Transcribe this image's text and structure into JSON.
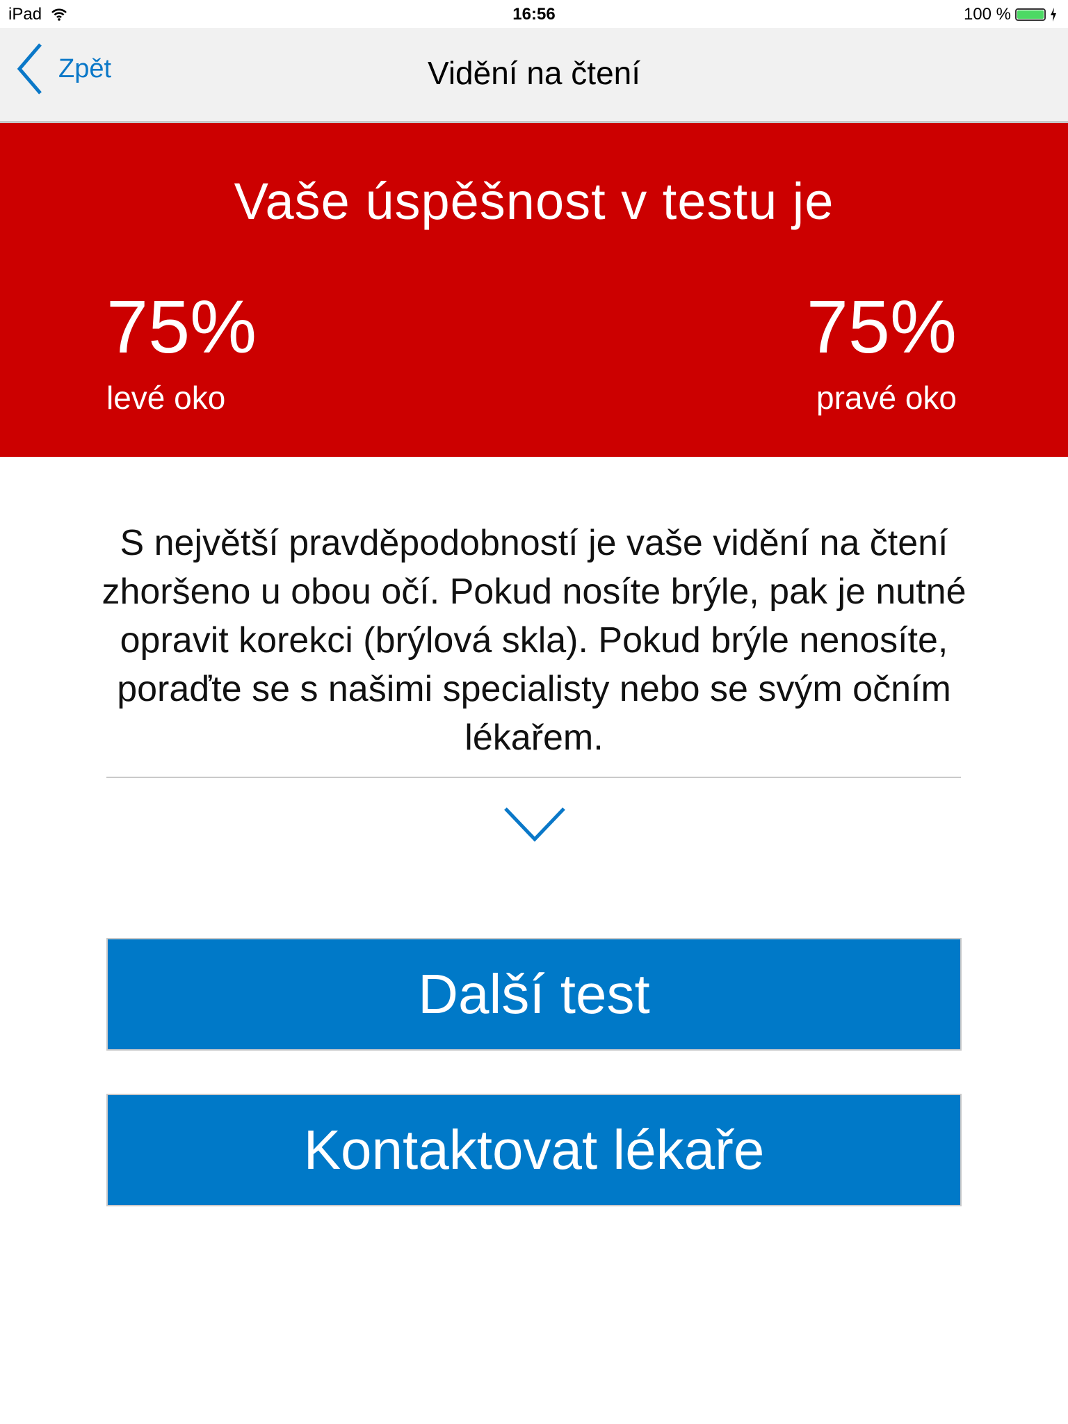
{
  "status_bar": {
    "device": "iPad",
    "time": "16:56",
    "battery": "100 %",
    "battery_level": 1.0
  },
  "nav": {
    "back_label": "Zpět",
    "title": "Vidění na čtení"
  },
  "result": {
    "heading": "Vaše úspěšnost v testu je",
    "left_eye": {
      "value": "75%",
      "label": "levé oko"
    },
    "right_eye": {
      "value": "75%",
      "label": "pravé oko"
    }
  },
  "message": "S největší pravděpodobností je vaše vidění na čtení zhoršeno u obou očí. Pokud nosíte brýle, pak je nutné opravit korekci (brýlová skla). Pokud brýle nenosíte, poraďte se s našimi specialisty nebo se svým očním lékařem.",
  "buttons": {
    "next_test": "Další test",
    "contact_doctor": "Kontaktovat lékaře"
  },
  "colors": {
    "accent": "#0079c8",
    "result_bg": "#cc0000",
    "nav_bg": "#f1f1f1"
  }
}
